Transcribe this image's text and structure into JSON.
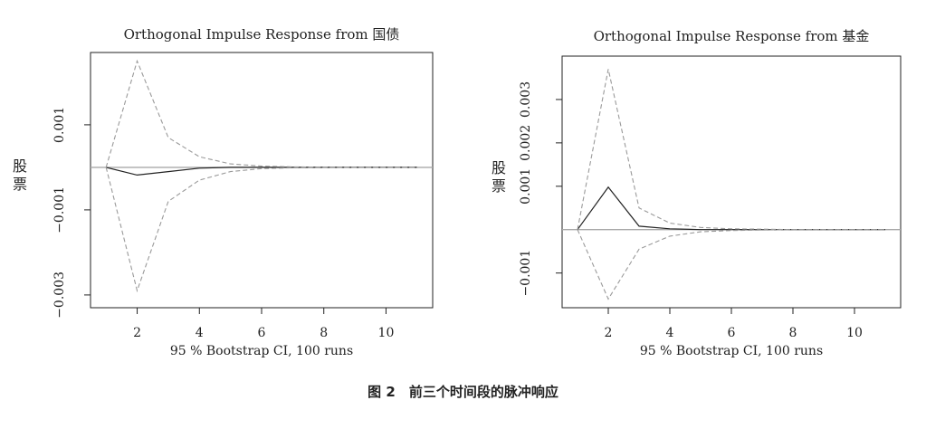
{
  "caption": "图 2　前三个时间段的脉冲响应",
  "chart_data": [
    {
      "type": "line",
      "title": "Orthogonal Impulse Response from 国债",
      "xlabel": "95 % Bootstrap CI,  100 runs",
      "ylabel": "股票",
      "x": [
        1,
        2,
        3,
        4,
        5,
        6,
        7,
        8,
        9,
        10,
        11
      ],
      "xticks": [
        2,
        4,
        6,
        8,
        10
      ],
      "yticks": [
        -0.003,
        -0.001,
        0.001
      ],
      "ytick_labels": [
        "−0.003",
        "−0.001",
        "0.001"
      ],
      "xlim": [
        0.5,
        11.5
      ],
      "ylim": [
        -0.0033,
        0.0027
      ],
      "zero_line": 0,
      "grid": false,
      "series": [
        {
          "role": "response",
          "values": [
            0,
            -0.00018,
            -0.0001,
            -2e-05,
            0,
            0,
            0,
            0,
            0,
            0,
            0
          ]
        },
        {
          "role": "upper",
          "values": [
            0,
            0.0025,
            0.0007,
            0.00025,
            8e-05,
            3e-05,
            1e-05,
            5e-06,
            0,
            0,
            0
          ]
        },
        {
          "role": "lower",
          "values": [
            0,
            -0.0029,
            -0.0008,
            -0.0003,
            -0.0001,
            -3e-05,
            -1e-05,
            -5e-06,
            0,
            0,
            0
          ]
        }
      ]
    },
    {
      "type": "line",
      "title": "Orthogonal Impulse Response from 基金",
      "xlabel": "95 % Bootstrap CI,  100 runs",
      "ylabel": "股票",
      "x": [
        1,
        2,
        3,
        4,
        5,
        6,
        7,
        8,
        9,
        10,
        11
      ],
      "xticks": [
        2,
        4,
        6,
        8,
        10
      ],
      "yticks": [
        -0.001,
        0.001,
        0.002,
        0.003
      ],
      "ytick_labels": [
        "−0.001",
        "0.001",
        "0.002",
        "0.003"
      ],
      "xlim": [
        0.5,
        11.5
      ],
      "ylim": [
        -0.0018,
        0.004
      ],
      "zero_line": 0,
      "grid": false,
      "series": [
        {
          "role": "response",
          "values": [
            0,
            0.00098,
            8e-05,
            2e-05,
            0,
            0,
            0,
            0,
            0,
            0,
            0
          ]
        },
        {
          "role": "upper",
          "values": [
            0,
            0.0037,
            0.0005,
            0.00015,
            5e-05,
            2e-05,
            1e-05,
            0,
            0,
            0,
            0
          ]
        },
        {
          "role": "lower",
          "values": [
            0,
            -0.0016,
            -0.00045,
            -0.00015,
            -5e-05,
            -2e-05,
            -1e-05,
            0,
            0,
            0,
            0
          ]
        }
      ]
    }
  ]
}
